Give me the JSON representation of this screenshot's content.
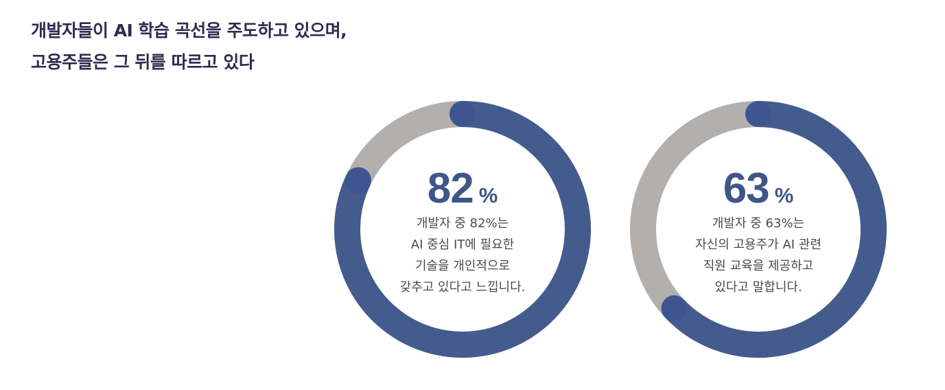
{
  "headline": {
    "line1": "개발자들이 AI 학습 곡선을 주도하고 있으며,",
    "line2": "고용주들은 그 뒤를 따르고 있다"
  },
  "colors": {
    "filled": "#445b8d",
    "remaining": "#b3afac",
    "cap": "#3e5591",
    "number": "#3f5689",
    "text": "#4a4a4a",
    "headline": "#2b2d4f"
  },
  "chart_data": [
    {
      "type": "pie",
      "value": 82,
      "max": 100,
      "number_label": "82",
      "unit_label": "%",
      "description_lines": [
        "개발자 중 82%는",
        "AI 중심 IT에 필요한",
        "기술을 개인적으로",
        "갖추고 있다고 느낍니다."
      ]
    },
    {
      "type": "pie",
      "value": 63,
      "max": 100,
      "number_label": "63",
      "unit_label": "%",
      "description_lines": [
        "개발자 중 63%는",
        "자신의 고용주가 AI 관련",
        "직원 교육을 제공하고",
        "있다고 말합니다."
      ]
    }
  ]
}
